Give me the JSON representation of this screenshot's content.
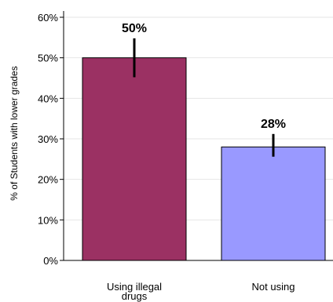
{
  "chart_data": {
    "type": "bar",
    "title": "",
    "xlabel": "",
    "ylabel": "% of Students with lower grades",
    "categories": [
      "Using illegal drugs",
      "Not using"
    ],
    "category_lines": [
      [
        "Using illegal",
        "drugs"
      ],
      [
        "Not using"
      ]
    ],
    "values": [
      50,
      28
    ],
    "error_low": [
      45.2,
      25.6
    ],
    "error_high": [
      54.8,
      31.2
    ],
    "data_labels": [
      "50%",
      "28%"
    ],
    "colors": [
      "#9b3163",
      "#9999ff"
    ],
    "ylim": [
      0,
      60
    ],
    "yticks": [
      0,
      10,
      20,
      30,
      40,
      50,
      60
    ],
    "ytick_labels": [
      "0%",
      "10%",
      "20%",
      "30%",
      "40%",
      "50%",
      "60%"
    ],
    "grid": true,
    "legend": "none"
  }
}
